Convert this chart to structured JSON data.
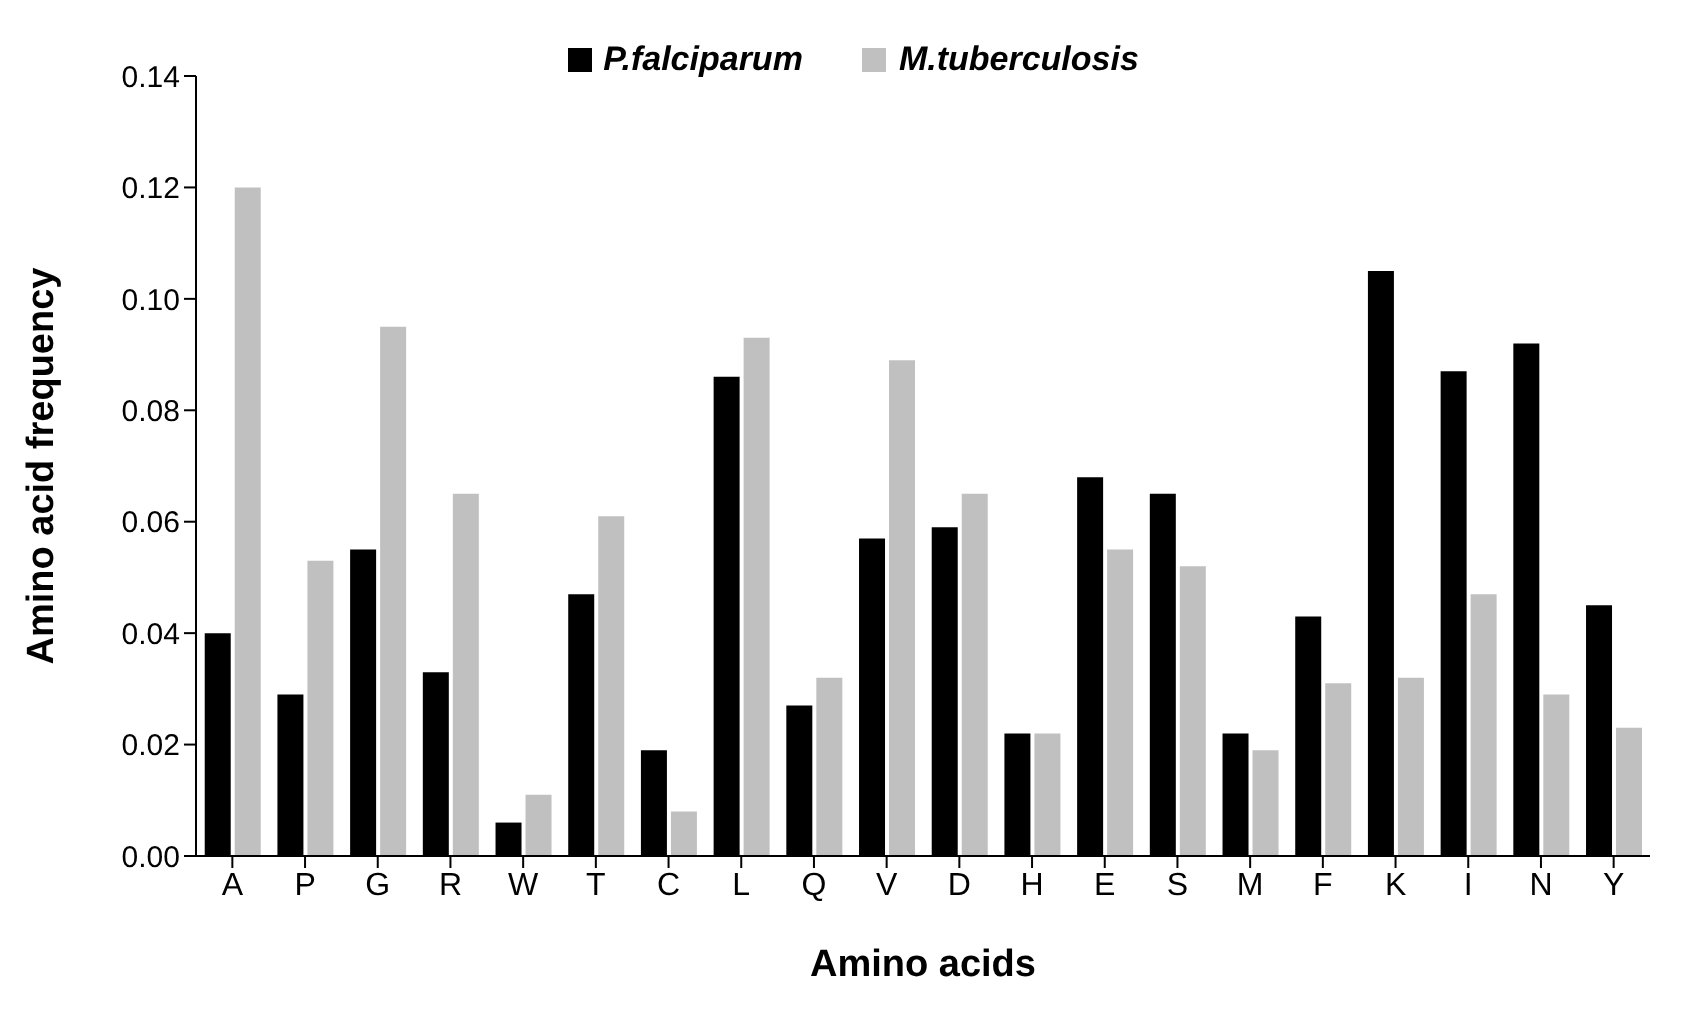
{
  "chart_data": {
    "type": "bar",
    "xlabel": "Amino acids",
    "ylabel": "Amino acid  frequency",
    "categories": [
      "A",
      "P",
      "G",
      "R",
      "W",
      "T",
      "C",
      "L",
      "Q",
      "V",
      "D",
      "H",
      "E",
      "S",
      "M",
      "F",
      "K",
      "I",
      "N",
      "Y"
    ],
    "series": [
      {
        "name": "P.falciparum",
        "color": "#000000",
        "values": [
          0.04,
          0.029,
          0.055,
          0.033,
          0.006,
          0.047,
          0.019,
          0.086,
          0.027,
          0.057,
          0.059,
          0.022,
          0.068,
          0.065,
          0.022,
          0.043,
          0.105,
          0.087,
          0.092,
          0.045
        ]
      },
      {
        "name": "M.tuberculosis",
        "color": "#c0c0c0",
        "values": [
          0.12,
          0.053,
          0.095,
          0.065,
          0.011,
          0.061,
          0.008,
          0.093,
          0.032,
          0.089,
          0.065,
          0.022,
          0.055,
          0.052,
          0.019,
          0.031,
          0.032,
          0.047,
          0.029,
          0.023
        ]
      }
    ],
    "ylim": [
      0,
      0.14
    ],
    "yticks": [
      {
        "value": 0,
        "label": "0.00"
      },
      {
        "value": 0.02,
        "label": "0.02"
      },
      {
        "value": 0.04,
        "label": "0.04"
      },
      {
        "value": 0.06,
        "label": "0.06"
      },
      {
        "value": 0.08,
        "label": "0.08"
      },
      {
        "value": 0.1,
        "label": "0.10"
      },
      {
        "value": 0.12,
        "label": "0.12"
      },
      {
        "value": 0.14,
        "label": "0.14"
      }
    ],
    "grid": false,
    "legend": "top"
  }
}
